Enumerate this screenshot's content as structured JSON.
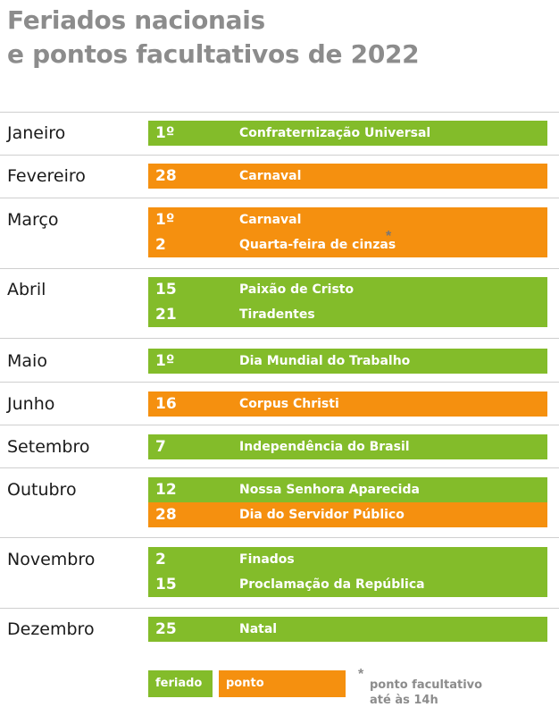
{
  "title": {
    "line1": "Feriados nacionais",
    "line2": "e pontos facultativos de 2022"
  },
  "colors": {
    "feriado": "#83bc2a",
    "ponto_facultativo": "#f5900f"
  },
  "months": [
    {
      "name": "Janeiro",
      "entries": [
        {
          "day": "1º",
          "name": "Confraternização Universal",
          "type": "feriado"
        }
      ]
    },
    {
      "name": "Fevereiro",
      "entries": [
        {
          "day": "28",
          "name": "Carnaval",
          "type": "ponto_facultativo"
        }
      ]
    },
    {
      "name": "Março",
      "entries": [
        {
          "day": "1º",
          "name": "Carnaval",
          "type": "ponto_facultativo"
        },
        {
          "day": "2",
          "name": "Quarta-feira de cinzas",
          "type": "ponto_facultativo",
          "asterisk": "*"
        }
      ]
    },
    {
      "name": "Abril",
      "entries": [
        {
          "day": "15",
          "name": "Paixão de Cristo",
          "type": "feriado"
        },
        {
          "day": "21",
          "name": "Tiradentes",
          "type": "feriado"
        }
      ]
    },
    {
      "name": "Maio",
      "entries": [
        {
          "day": "1º",
          "name": "Dia Mundial do Trabalho",
          "type": "feriado"
        }
      ]
    },
    {
      "name": "Junho",
      "entries": [
        {
          "day": "16",
          "name": "Corpus Christi",
          "type": "ponto_facultativo"
        }
      ]
    },
    {
      "name": "Setembro",
      "entries": [
        {
          "day": "7",
          "name": "Independência do Brasil",
          "type": "feriado"
        }
      ]
    },
    {
      "name": "Outubro",
      "entries": [
        {
          "day": "12",
          "name": "Nossa Senhora Aparecida",
          "type": "feriado"
        },
        {
          "day": "28",
          "name": "Dia do Servidor Público",
          "type": "ponto_facultativo"
        }
      ]
    },
    {
      "name": "Novembro",
      "entries": [
        {
          "day": "2",
          "name": "Finados",
          "type": "feriado"
        },
        {
          "day": "15",
          "name": "Proclamação da República",
          "type": "feriado"
        }
      ]
    },
    {
      "name": "Dezembro",
      "entries": [
        {
          "day": "25",
          "name": "Natal",
          "type": "feriado"
        }
      ]
    }
  ],
  "legend": {
    "feriado": "feriado",
    "ponto_facultativo": "ponto facultativo",
    "asterisk": "*",
    "note_line1": "ponto facultativo",
    "note_line2": "até às 14h"
  }
}
